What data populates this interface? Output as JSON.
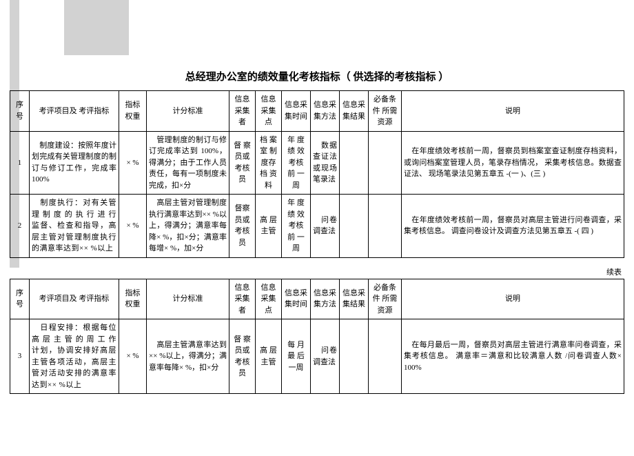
{
  "title": "总经理办公室的绩效量化考核指标（ 供选择的考核指标 ）",
  "headers": {
    "seq": "序号",
    "item": "考评项目及\n考评指标",
    "weight": "指标\n权重",
    "score": "计分标准",
    "collector": "信息\n采集者",
    "point": "信息\n采集点",
    "time": "信息采\n集时间",
    "method": "信息采\n集方法",
    "result": "信息采\n集结果",
    "resource": "必备条件\n所需资源",
    "desc": "说明"
  },
  "continue_label": "续表",
  "rows1": [
    {
      "seq": "1",
      "item": "　制度建设：按照年度计划完成有关管理制度的制订与修订工作，完成率 100%",
      "weight": "× %",
      "score": "　管理制度的制订与修订完成率达到 100%，得满分；由于工作人员责任，每有一项制度未完成，扣×分",
      "collector": "督 察员或考核员",
      "point": "档 案室 制 度存 档 资料",
      "time": "年 度绩 效 考核 前 一周",
      "method": "　数据查证法或现场笔录法",
      "result": "",
      "resource": "",
      "desc": "　在年度绩效考核前一周，督察员到档案室查证制度存档资料，或询问档案室管理人员，笔录存档情况， 采集考核信息。数据查证法、 现场笔录法见第五章五 -(一 )、(三 )"
    },
    {
      "seq": "2",
      "item": "　制度执行：对有关管理 制 度 的 执 行 进 行 监督、检查和指导，高层主管对管理制度执行的满意率达到×× %以上",
      "weight": "× %",
      "score": "　高层主管对管理制度执行满意率达到×× %以上，得满分；满意率每降× %，扣×分；满意率每增× %，加×分",
      "collector": "督察员或考核员",
      "point": "高 层主管",
      "time": "年 度绩 效 考核 前 一周",
      "method": "　问卷调查法",
      "result": "",
      "resource": "",
      "desc": "　在年度绩效考核前一周，督察员对高层主管进行问卷调查，采集考核信息。 调查问卷设计及调查方法见第五章五 -( 四 )"
    }
  ],
  "rows2": [
    {
      "seq": "3",
      "item": "　日程安排：根据每位高 层 主 管 的 周 工 作 计划，协调安排好高层主管各项活动，高层主管对活动安排的满意率达到×× %以上",
      "weight": "× %",
      "score": "　高层主管满意率达到×× %以上，得满分；满意率每降× %，扣×分",
      "collector": "督 察员或考核员",
      "point": "高 层主管",
      "time": "每 月最 后 一周",
      "method": "　问卷调查法",
      "result": "",
      "resource": "",
      "desc": "　在每月最后一周，督察员对高层主管进行满意率问卷调查，采集考核信息。 满意率＝满意和比较满意人数 /问卷调查人数× 100%"
    }
  ]
}
